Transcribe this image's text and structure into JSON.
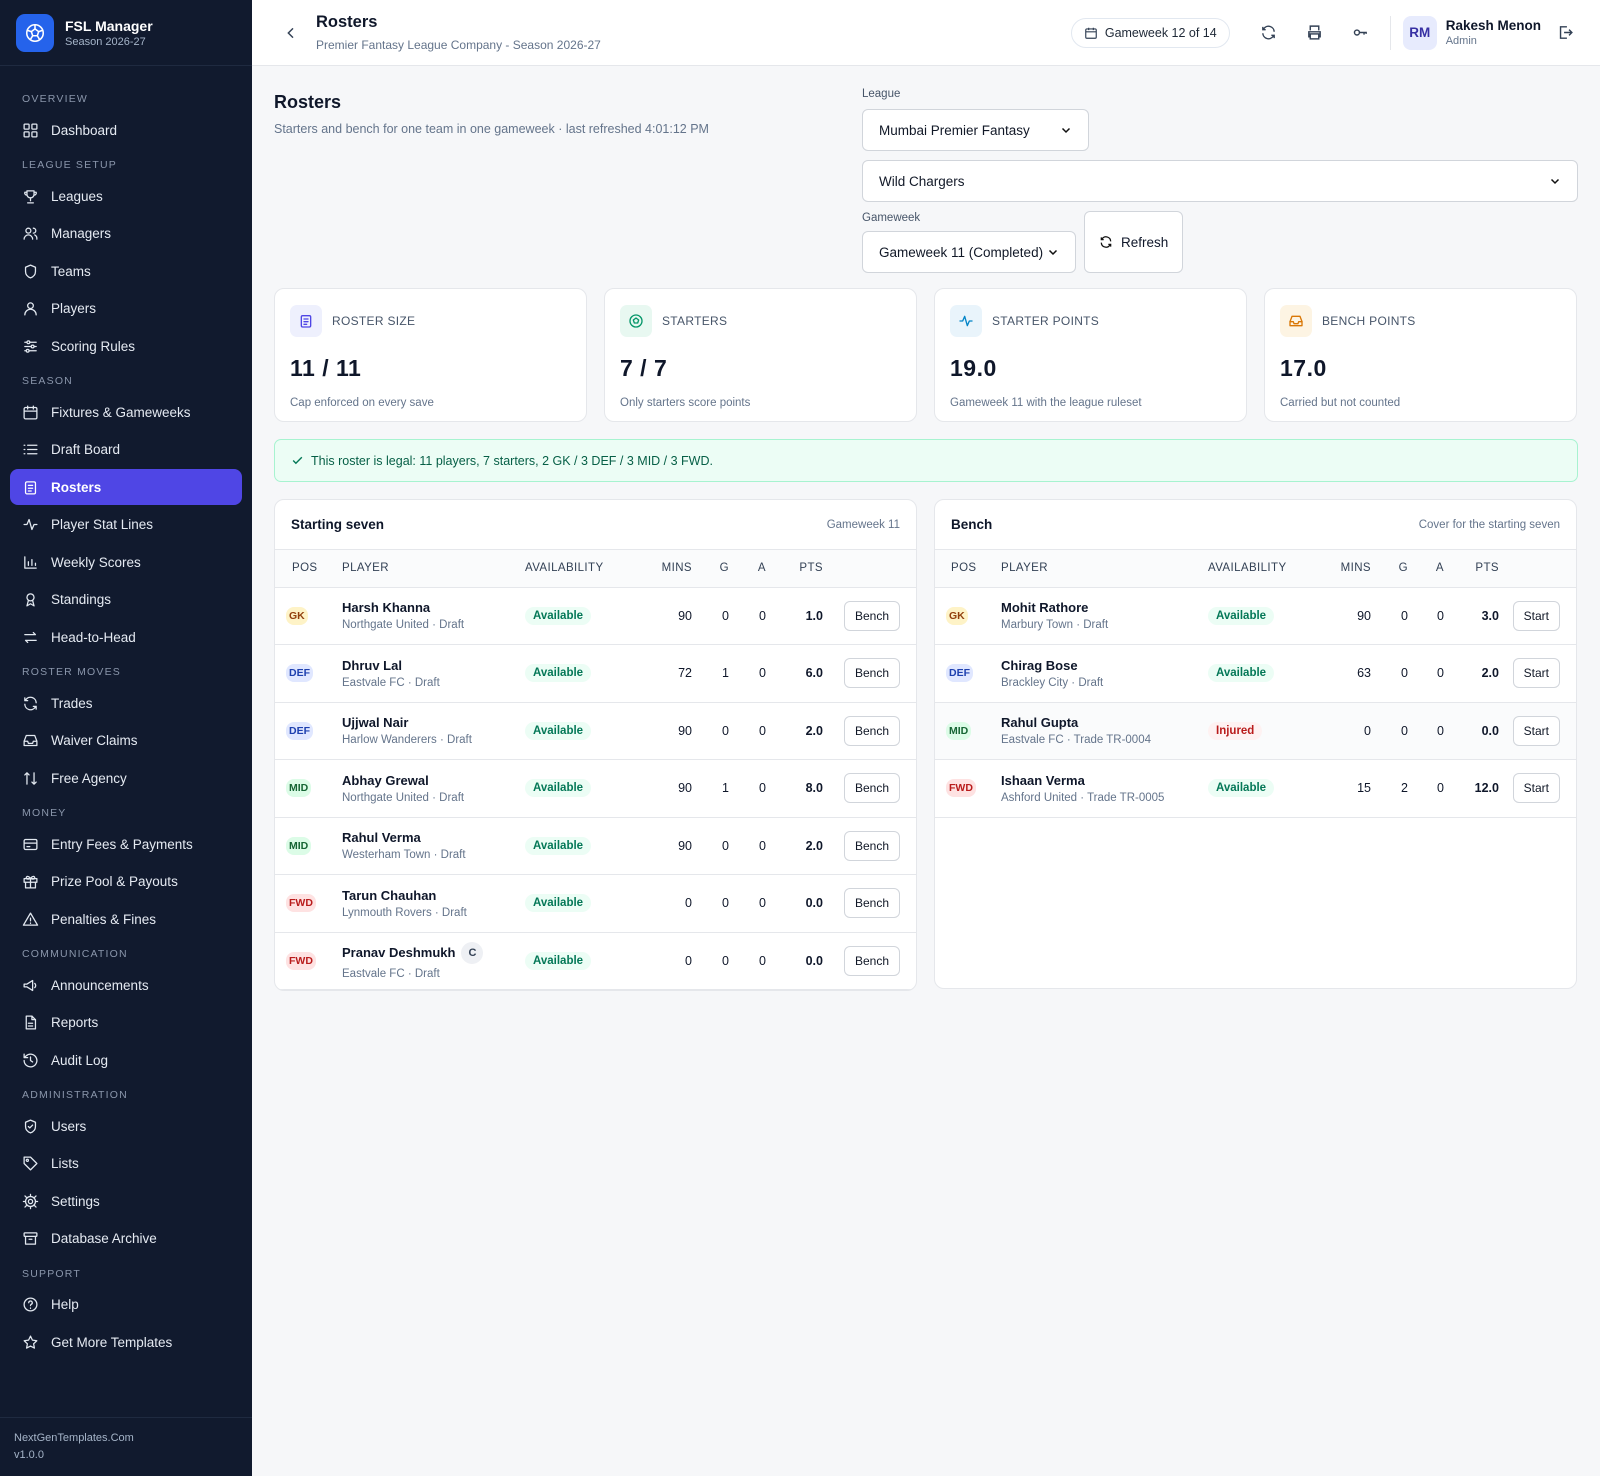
{
  "brand": {
    "name": "FSL Manager",
    "season": "Season 2026-27"
  },
  "sidebar": {
    "sections": [
      {
        "label": "Overview",
        "items": [
          {
            "label": "Dashboard",
            "icon": "dashboard-icon"
          }
        ]
      },
      {
        "label": "League Setup",
        "items": [
          {
            "label": "Leagues",
            "icon": "trophy-icon"
          },
          {
            "label": "Managers",
            "icon": "users-icon"
          },
          {
            "label": "Teams",
            "icon": "shield-icon"
          },
          {
            "label": "Players",
            "icon": "user-icon"
          },
          {
            "label": "Scoring Rules",
            "icon": "sliders-icon"
          }
        ]
      },
      {
        "label": "Season",
        "items": [
          {
            "label": "Fixtures & Gameweeks",
            "icon": "calendar-icon"
          },
          {
            "label": "Draft Board",
            "icon": "list-icon"
          },
          {
            "label": "Rosters",
            "icon": "clipboard-icon",
            "active": true
          },
          {
            "label": "Player Stat Lines",
            "icon": "activity-icon"
          },
          {
            "label": "Weekly Scores",
            "icon": "bar-chart-icon"
          },
          {
            "label": "Standings",
            "icon": "award-icon"
          },
          {
            "label": "Head-to-Head",
            "icon": "swap-icon"
          }
        ]
      },
      {
        "label": "Roster Moves",
        "items": [
          {
            "label": "Trades",
            "icon": "refresh-icon"
          },
          {
            "label": "Waiver Claims",
            "icon": "inbox-icon"
          },
          {
            "label": "Free Agency",
            "icon": "sort-icon"
          }
        ]
      },
      {
        "label": "Money",
        "items": [
          {
            "label": "Entry Fees & Payments",
            "icon": "credit-card-icon"
          },
          {
            "label": "Prize Pool & Payouts",
            "icon": "gift-icon"
          },
          {
            "label": "Penalties & Fines",
            "icon": "alert-triangle-icon"
          }
        ]
      },
      {
        "label": "Communication",
        "items": [
          {
            "label": "Announcements",
            "icon": "megaphone-icon"
          },
          {
            "label": "Reports",
            "icon": "file-text-icon"
          },
          {
            "label": "Audit Log",
            "icon": "history-icon"
          }
        ]
      },
      {
        "label": "Administration",
        "items": [
          {
            "label": "Users",
            "icon": "shield-check-icon"
          },
          {
            "label": "Lists",
            "icon": "tag-icon"
          },
          {
            "label": "Settings",
            "icon": "gear-icon"
          },
          {
            "label": "Database Archive",
            "icon": "archive-icon"
          }
        ]
      },
      {
        "label": "Support",
        "items": [
          {
            "label": "Help",
            "icon": "help-circle-icon"
          },
          {
            "label": "Get More Templates",
            "icon": "star-icon"
          }
        ]
      }
    ],
    "footer": {
      "site": "NextGenTemplates.Com",
      "version": "v1.0.0"
    }
  },
  "topbar": {
    "title": "Rosters",
    "subtitle": "Premier Fantasy League Company - Season 2026-27",
    "gameweek_pill": "Gameweek 12 of 14",
    "user": {
      "initials": "RM",
      "name": "Rakesh Menon",
      "role": "Admin"
    }
  },
  "page": {
    "title": "Rosters",
    "subtitle": "Starters and bench for one team in one gameweek · last refreshed 4:01:12 PM",
    "filters": {
      "league_label": "League",
      "league_value": "Mumbai Premier Fantasy",
      "team_value": "Wild Chargers",
      "gameweek_label": "Gameweek",
      "gameweek_value": "Gameweek 11 (Completed)",
      "refresh_label": "Refresh"
    }
  },
  "stats": [
    {
      "label": "Roster Size",
      "value": "11 / 11",
      "note": "Cap enforced on every save",
      "icon": "clipboard-icon",
      "color": "#4f46e5",
      "bg": "#eef0fd"
    },
    {
      "label": "Starters",
      "value": "7 / 7",
      "note": "Only starters score points",
      "icon": "ball-icon",
      "color": "#059669",
      "bg": "#e8f8f1"
    },
    {
      "label": "Starter Points",
      "value": "19.0",
      "note": "Gameweek 11 with the league ruleset",
      "icon": "activity-icon",
      "color": "#0284c7",
      "bg": "#e9f4fb"
    },
    {
      "label": "Bench Points",
      "value": "17.0",
      "note": "Carried but not counted",
      "icon": "inbox-icon",
      "color": "#d97706",
      "bg": "#fdf4e3"
    }
  ],
  "legal_banner": "This roster is legal: 11 players, 7 starters, 2 GK / 3 DEF / 3 MID / 3 FWD.",
  "columns": {
    "pos": "POS",
    "player": "PLAYER",
    "availability": "AVAILABILITY",
    "mins": "MINS",
    "g": "G",
    "a": "A",
    "pts": "PTS"
  },
  "starters": {
    "title": "Starting seven",
    "note": "Gameweek 11",
    "rows": [
      {
        "pos": "GK",
        "name": "Harsh Khanna",
        "meta": "Northgate United · Draft",
        "avail": "Available",
        "mins": "90",
        "g": "0",
        "a": "0",
        "pts": "1.0",
        "action": "Bench"
      },
      {
        "pos": "DEF",
        "name": "Dhruv Lal",
        "meta": "Eastvale FC · Draft",
        "avail": "Available",
        "mins": "72",
        "g": "1",
        "a": "0",
        "pts": "6.0",
        "action": "Bench"
      },
      {
        "pos": "DEF",
        "name": "Ujjwal Nair",
        "meta": "Harlow Wanderers · Draft",
        "avail": "Available",
        "mins": "90",
        "g": "0",
        "a": "0",
        "pts": "2.0",
        "action": "Bench"
      },
      {
        "pos": "MID",
        "name": "Abhay Grewal",
        "meta": "Northgate United · Draft",
        "avail": "Available",
        "mins": "90",
        "g": "1",
        "a": "0",
        "pts": "8.0",
        "action": "Bench"
      },
      {
        "pos": "MID",
        "name": "Rahul Verma",
        "meta": "Westerham Town · Draft",
        "avail": "Available",
        "mins": "90",
        "g": "0",
        "a": "0",
        "pts": "2.0",
        "action": "Bench"
      },
      {
        "pos": "FWD",
        "name": "Tarun Chauhan",
        "meta": "Lynmouth Rovers · Draft",
        "avail": "Available",
        "mins": "0",
        "g": "0",
        "a": "0",
        "pts": "0.0",
        "action": "Bench"
      },
      {
        "pos": "FWD",
        "name": "Pranav Deshmukh",
        "captain": "C",
        "meta": "Eastvale FC · Draft",
        "avail": "Available",
        "mins": "0",
        "g": "0",
        "a": "0",
        "pts": "0.0",
        "action": "Bench"
      }
    ]
  },
  "bench": {
    "title": "Bench",
    "note": "Cover for the starting seven",
    "rows": [
      {
        "pos": "GK",
        "name": "Mohit Rathore",
        "meta": "Marbury Town · Draft",
        "avail": "Available",
        "mins": "90",
        "g": "0",
        "a": "0",
        "pts": "3.0",
        "action": "Start"
      },
      {
        "pos": "DEF",
        "name": "Chirag Bose",
        "meta": "Brackley City · Draft",
        "avail": "Available",
        "mins": "63",
        "g": "0",
        "a": "0",
        "pts": "2.0",
        "action": "Start"
      },
      {
        "pos": "MID",
        "name": "Rahul Gupta",
        "meta": "Eastvale FC · Trade TR-0004",
        "avail": "Injured",
        "mins": "0",
        "g": "0",
        "a": "0",
        "pts": "0.0",
        "action": "Start"
      },
      {
        "pos": "FWD",
        "name": "Ishaan Verma",
        "meta": "Ashford United · Trade TR-0005",
        "avail": "Available",
        "mins": "15",
        "g": "2",
        "a": "0",
        "pts": "12.0",
        "action": "Start"
      }
    ]
  }
}
